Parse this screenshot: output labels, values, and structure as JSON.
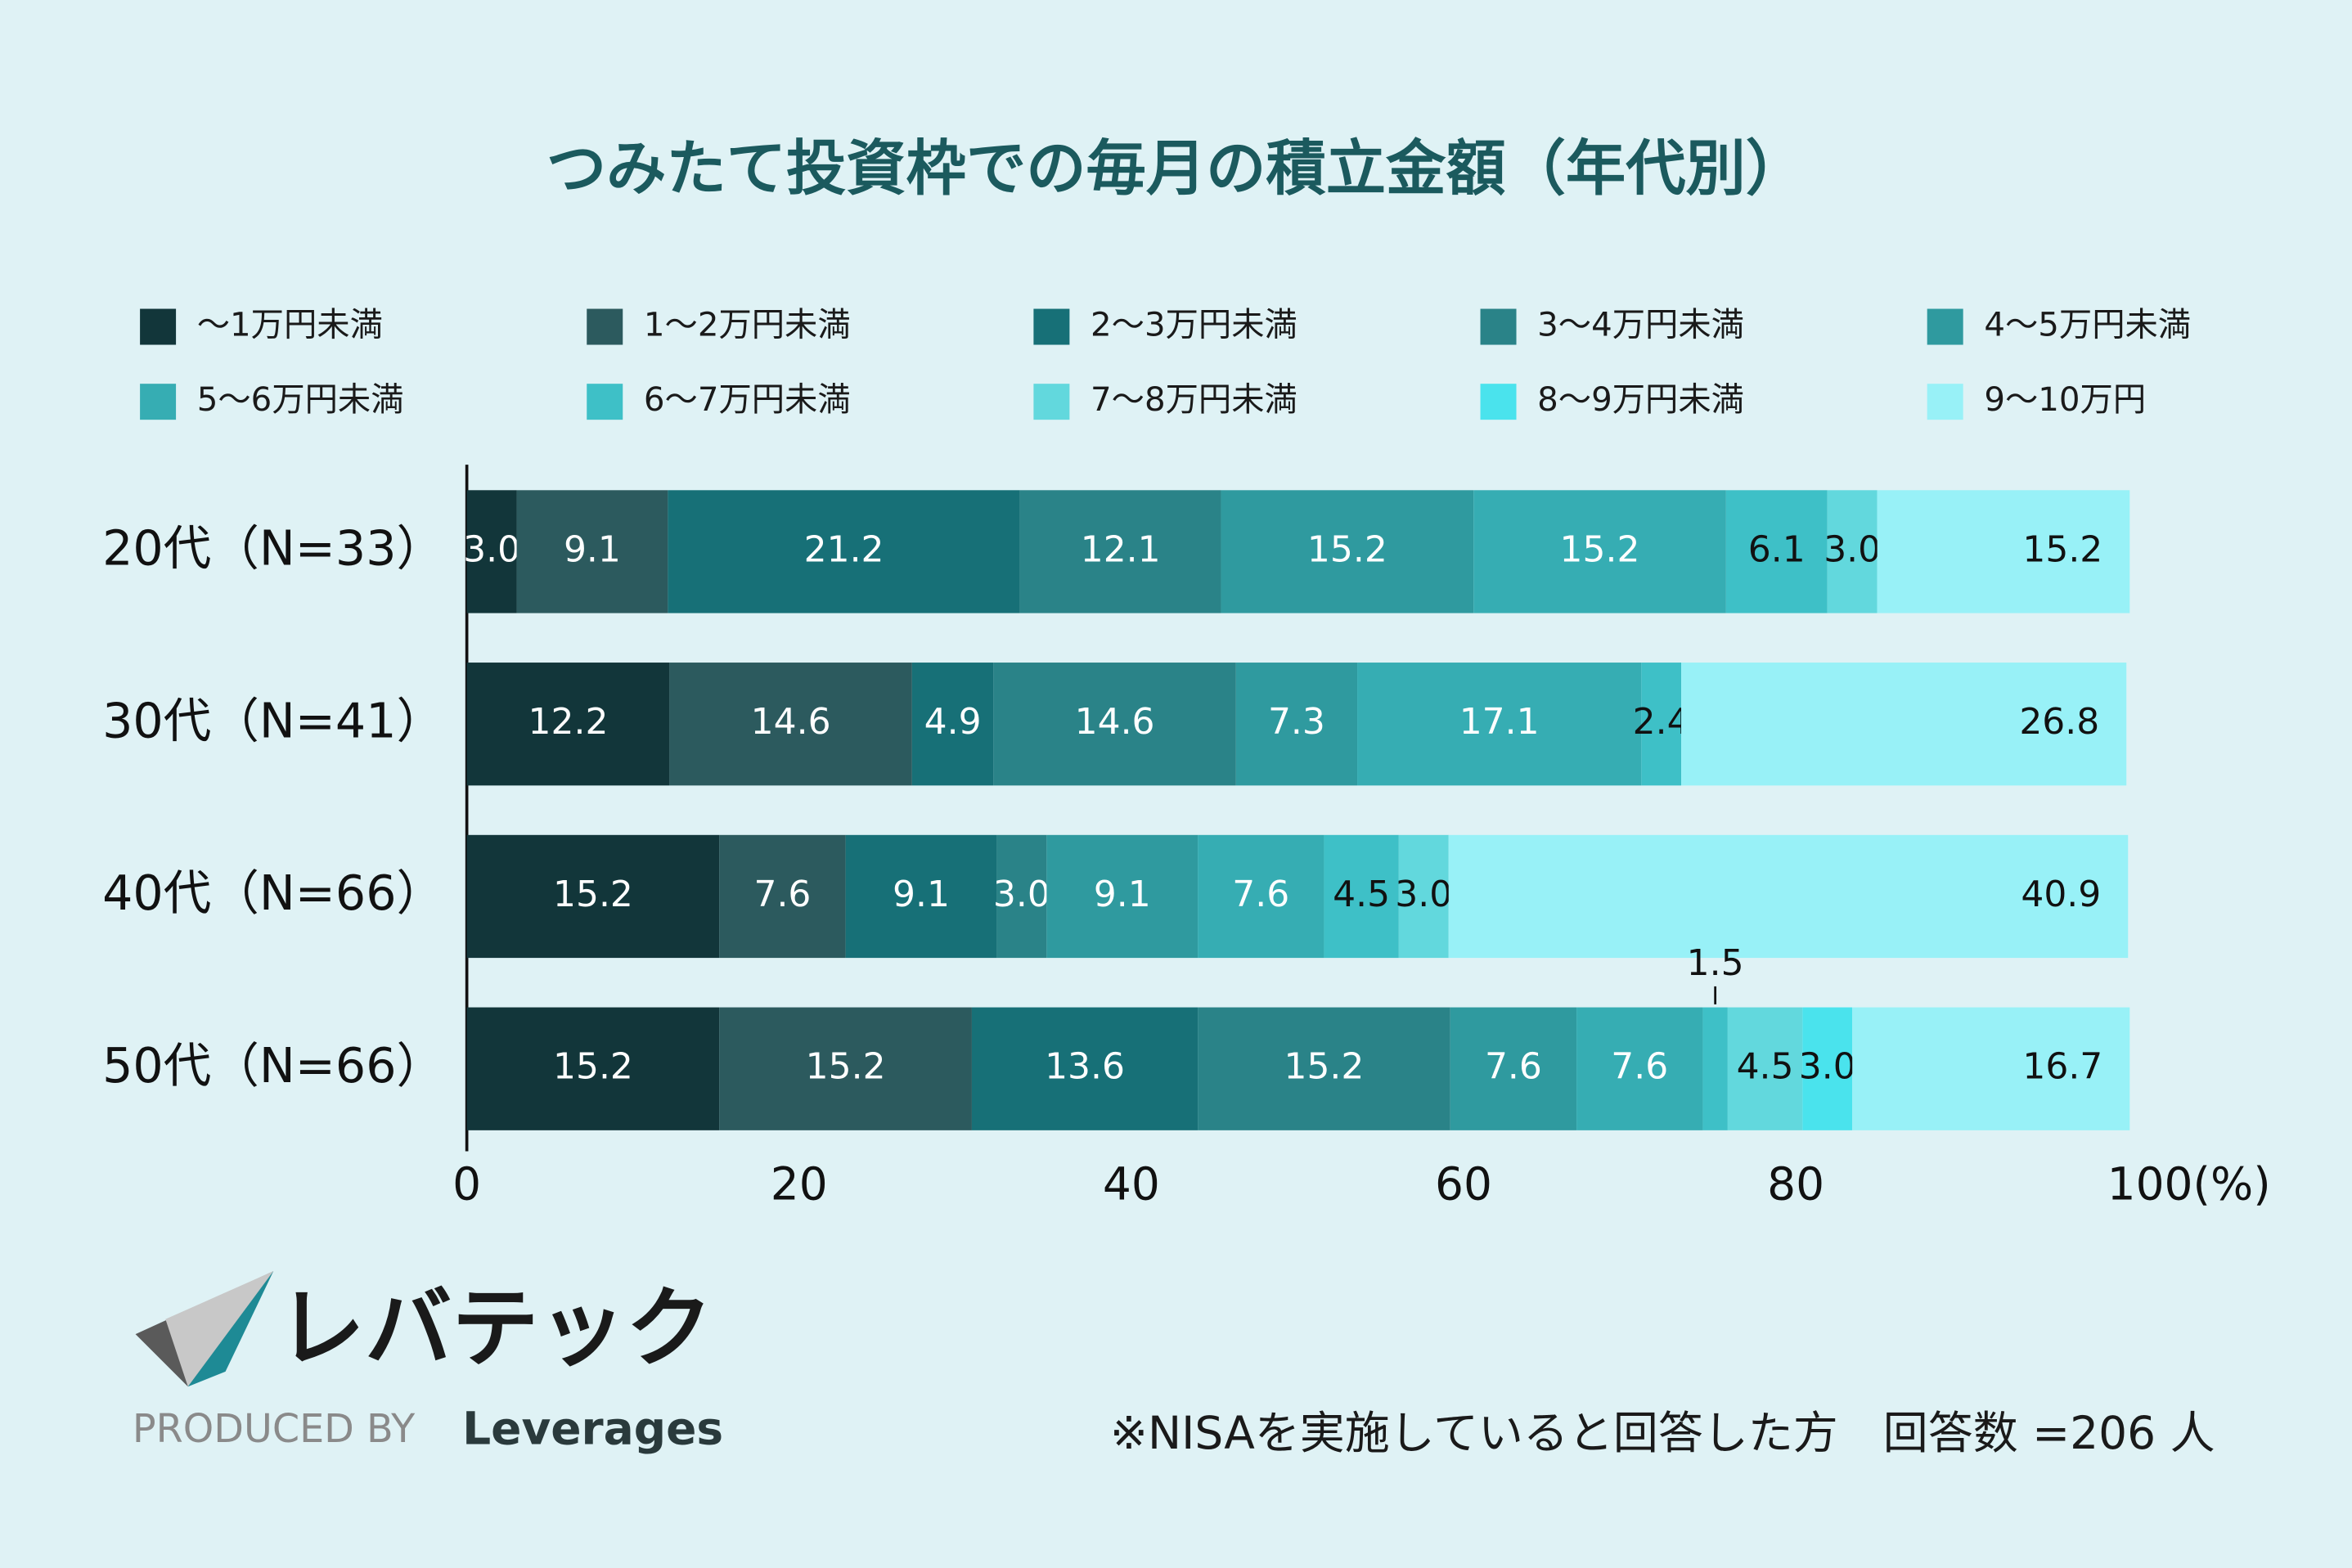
{
  "chart_data": {
    "type": "stacked-barh",
    "title": "つみたて投資枠での毎月の積立金額（年代別）",
    "categories": [
      "20代（N=33）",
      "30代（N=41）",
      "40代（N=66）",
      "50代（N=66）"
    ],
    "series": [
      {
        "name": "～1万円未満",
        "color": "#12363a",
        "label_color": "#ffffff",
        "values": [
          3.0,
          12.2,
          15.2,
          15.2
        ],
        "value_labels": [
          "3.0",
          "12.2",
          "15.2",
          "15.2"
        ]
      },
      {
        "name": "1～2万円未満",
        "color": "#2c5a5e",
        "label_color": "#ffffff",
        "values": [
          9.1,
          14.6,
          7.6,
          15.2
        ],
        "value_labels": [
          "9.1",
          "14.6",
          "7.6",
          "15.2"
        ]
      },
      {
        "name": "2～3万円未満",
        "color": "#177077",
        "label_color": "#ffffff",
        "values": [
          21.2,
          4.9,
          9.1,
          13.6
        ],
        "value_labels": [
          "21.2",
          "4.9",
          "9.1",
          "13.6"
        ]
      },
      {
        "name": "3～4万円未満",
        "color": "#2a8388",
        "label_color": "#ffffff",
        "values": [
          12.1,
          14.6,
          3.0,
          15.2
        ],
        "value_labels": [
          "12.1",
          "14.6",
          "3.0",
          "15.2"
        ]
      },
      {
        "name": "4～5万円未満",
        "color": "#2f9a9f",
        "label_color": "#ffffff",
        "values": [
          15.2,
          7.3,
          9.1,
          7.6
        ],
        "value_labels": [
          "15.2",
          "7.3",
          "9.1",
          "7.6"
        ]
      },
      {
        "name": "5～6万円未満",
        "color": "#36adb3",
        "label_color": "#ffffff",
        "values": [
          15.2,
          17.1,
          7.6,
          7.6
        ],
        "value_labels": [
          "15.2",
          "17.1",
          "7.6",
          "7.6"
        ]
      },
      {
        "name": "6～7万円未満",
        "color": "#3ec0c7",
        "label_color": "#111111",
        "values": [
          6.1,
          2.4,
          4.5,
          1.5
        ],
        "value_labels": [
          "6.1",
          "2.4",
          "4.5",
          "1.5"
        ]
      },
      {
        "name": "7～8万円未満",
        "color": "#62d8dd",
        "label_color": "#111111",
        "values": [
          3.0,
          null,
          3.0,
          4.5
        ],
        "value_labels": [
          "3.0",
          null,
          "3.0",
          "4.5"
        ]
      },
      {
        "name": "8～9万円未満",
        "color": "#4ae3ed",
        "label_color": "#111111",
        "values": [
          null,
          null,
          null,
          3.0
        ],
        "value_labels": [
          null,
          null,
          null,
          "3.0"
        ]
      },
      {
        "name": "9～10万円",
        "color": "#98f1f7",
        "label_color": "#111111",
        "values": [
          15.2,
          26.8,
          40.9,
          16.7
        ],
        "value_labels": [
          "15.2",
          "26.8",
          "40.9",
          "16.7"
        ]
      }
    ],
    "xlim": [
      0,
      100
    ],
    "xticks": [
      0,
      20,
      40,
      60,
      80,
      {
        "value": 100,
        "label": "100(%)"
      }
    ],
    "note": "※NISAを実施していると回答した方　回答数 =206 人",
    "brand_name": "レバテック",
    "produced_by": "PRODUCED BY",
    "brand": "Leverages"
  }
}
